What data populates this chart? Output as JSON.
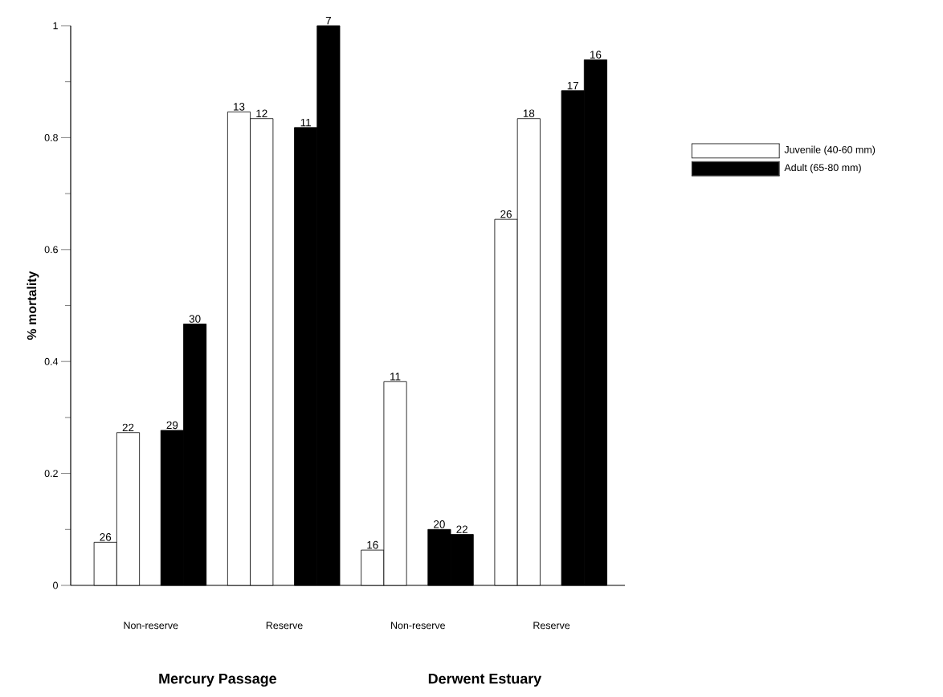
{
  "chart_data": {
    "type": "bar",
    "ylabel": "% mortality",
    "categories": [
      "Non-reserve",
      "Reserve",
      "Non-reserve",
      "Reserve"
    ],
    "series": [
      {
        "name": "Juvenile (40-60 mm)",
        "color": "#ffffff",
        "values": [
          0.077,
          0.846,
          0.063,
          0.654
        ]
      },
      {
        "color": "#ffffff",
        "values": [
          0.273,
          0.834,
          0.364,
          0.834
        ]
      },
      {
        "name": "Adult (65-80 mm)",
        "color": "#000000",
        "values": [
          0.277,
          0.818,
          0.1,
          0.884
        ]
      },
      {
        "color": "#000000",
        "values": [
          0.467,
          1.0,
          0.091,
          0.939
        ]
      }
    ],
    "ylim": [
      0,
      1
    ],
    "yticks": [
      0,
      0.2,
      0.4,
      0.6,
      0.8,
      1
    ],
    "annotations": [
      "26",
      "22",
      "29",
      "30",
      "13",
      "12",
      "11",
      "7",
      "16",
      "11",
      "20",
      "22",
      "26",
      "18",
      "17",
      "16",
      "Mercury Passage",
      "Derwent Estuary"
    ],
    "legend": "right"
  }
}
